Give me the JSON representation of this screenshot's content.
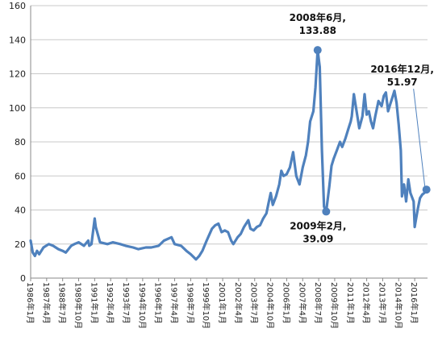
{
  "chart_data": {
    "type": "line",
    "title": "",
    "xlabel": "",
    "ylabel": "",
    "ylim": [
      0,
      160
    ],
    "yticks": [
      0,
      20,
      40,
      60,
      80,
      100,
      120,
      140,
      160
    ],
    "xticks": [
      "1986年1月",
      "1987年4月",
      "1988年7月",
      "1989年10月",
      "1991年1月",
      "1992年4月",
      "1993年7月",
      "1994年10月",
      "1996年1月",
      "1997年4月",
      "1998年7月",
      "1999年10月",
      "2001年1月",
      "2002年4月",
      "2003年7月",
      "2004年10月",
      "2006年1月",
      "2007年4月",
      "2008年7月",
      "2009年10月",
      "2011年1月",
      "2012年4月",
      "2013年7月",
      "2014年10月",
      "2016年1月"
    ],
    "grid": "horizontal",
    "color": "#4f81bd",
    "series": [
      {
        "x": [
          "1986-01",
          "1986-03",
          "1986-05",
          "1986-07",
          "1986-09",
          "1987-01",
          "1987-06",
          "1987-10",
          "1988-03",
          "1988-07",
          "1988-10",
          "1989-03",
          "1989-06",
          "1989-10",
          "1990-03",
          "1990-07",
          "1990-08",
          "1990-10",
          "1991-01",
          "1991-02",
          "1991-06",
          "1992-01",
          "1992-06",
          "1993-01",
          "1993-06",
          "1994-01",
          "1994-06",
          "1995-01",
          "1995-06",
          "1996-01",
          "1996-06",
          "1997-01",
          "1997-04",
          "1997-10",
          "1998-03",
          "1998-07",
          "1998-12",
          "1999-03",
          "1999-06",
          "1999-10",
          "2000-03",
          "2000-06",
          "2000-09",
          "2000-12",
          "2001-03",
          "2001-06",
          "2001-09",
          "2001-11",
          "2002-03",
          "2002-06",
          "2002-09",
          "2003-01",
          "2003-03",
          "2003-06",
          "2003-09",
          "2003-12",
          "2004-03",
          "2004-06",
          "2004-08",
          "2004-10",
          "2004-12",
          "2005-03",
          "2005-06",
          "2005-08",
          "2005-10",
          "2006-01",
          "2006-04",
          "2006-07",
          "2006-10",
          "2007-01",
          "2007-04",
          "2007-07",
          "2007-09",
          "2007-11",
          "2008-02",
          "2008-04",
          "2008-06",
          "2008-08",
          "2008-10",
          "2008-12",
          "2009-02",
          "2009-05",
          "2009-07",
          "2009-09",
          "2009-12",
          "2010-03",
          "2010-05",
          "2010-08",
          "2010-11",
          "2011-01",
          "2011-02",
          "2011-04",
          "2011-06",
          "2011-09",
          "2011-12",
          "2012-02",
          "2012-04",
          "2012-06",
          "2012-08",
          "2012-10",
          "2012-12",
          "2013-03",
          "2013-06",
          "2013-08",
          "2013-10",
          "2013-12",
          "2014-02",
          "2014-04",
          "2014-06",
          "2014-08",
          "2014-10",
          "2014-12",
          "2015-01",
          "2015-03",
          "2015-05",
          "2015-07",
          "2015-09",
          "2015-12",
          "2016-01",
          "2016-02",
          "2016-04",
          "2016-06",
          "2016-08",
          "2016-10",
          "2016-12"
        ],
        "y": [
          22,
          15,
          13,
          16,
          14,
          18,
          20,
          19,
          17,
          16,
          15,
          19,
          20,
          21,
          19,
          22,
          19,
          20,
          35,
          30,
          21,
          20,
          21,
          20,
          19,
          18,
          17,
          18,
          18,
          19,
          22,
          24,
          20,
          19,
          16,
          14,
          11,
          13,
          16,
          22,
          29,
          31,
          32,
          27,
          28,
          27,
          22,
          20,
          24,
          26,
          30,
          34,
          29,
          28,
          30,
          31,
          35,
          38,
          44,
          50,
          43,
          48,
          55,
          63,
          60,
          61,
          65,
          74,
          60,
          55,
          65,
          72,
          80,
          92,
          98,
          112,
          133.88,
          124,
          75,
          42,
          39.09,
          54,
          66,
          70,
          75,
          80,
          77,
          82,
          88,
          92,
          95,
          108,
          100,
          88,
          95,
          108,
          96,
          98,
          92,
          88,
          95,
          104,
          101,
          107,
          109,
          98,
          102,
          106,
          110,
          103,
          90,
          75,
          48,
          55,
          45,
          58,
          50,
          45,
          30,
          34,
          41,
          47,
          49,
          50,
          51.97
        ]
      }
    ],
    "annotations": [
      {
        "date": "2008年6月,",
        "value": "133.88",
        "x": "2008-06",
        "y": 133.88
      },
      {
        "date": "2009年2月,",
        "value": "39.09",
        "x": "2009-02",
        "y": 39.09
      },
      {
        "date": "2016年12月,",
        "value": "51.97",
        "x": "2016-12",
        "y": 51.97
      }
    ]
  }
}
